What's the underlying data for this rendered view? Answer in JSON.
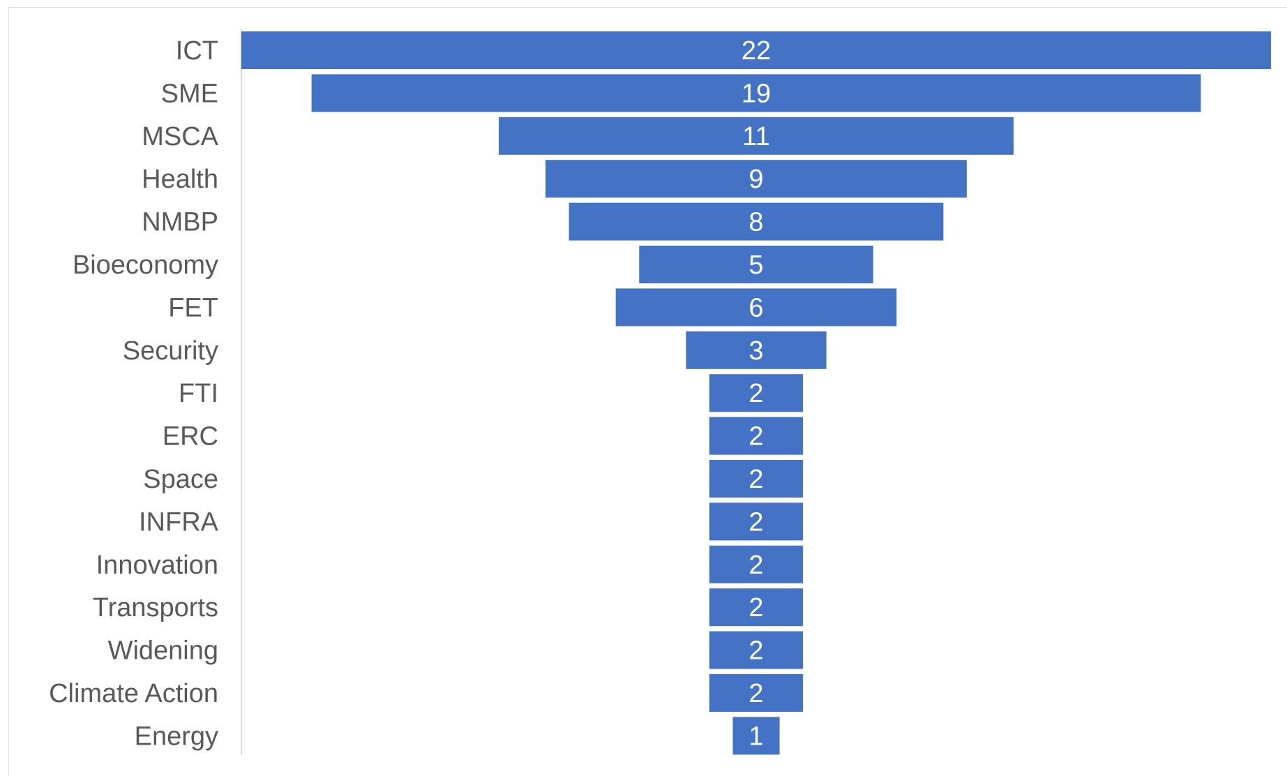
{
  "chart_data": {
    "type": "bar",
    "orientation": "horizontal",
    "style": "funnel",
    "categories": [
      "ICT",
      "SME",
      "MSCA",
      "Health",
      "NMBP",
      "Bioeconomy",
      "FET",
      "Security",
      "FTI",
      "ERC",
      "Space",
      "INFRA",
      "Innovation",
      "Transports",
      "Widening",
      "Climate Action",
      "Energy"
    ],
    "values": [
      22,
      19,
      11,
      9,
      8,
      5,
      6,
      3,
      2,
      2,
      2,
      2,
      2,
      2,
      2,
      2,
      1
    ],
    "data_labels": true,
    "legend": "none",
    "grid": false,
    "bar_color": "#4472C4",
    "label_color": "#595959",
    "data_label_color": "#FFFFFF"
  }
}
